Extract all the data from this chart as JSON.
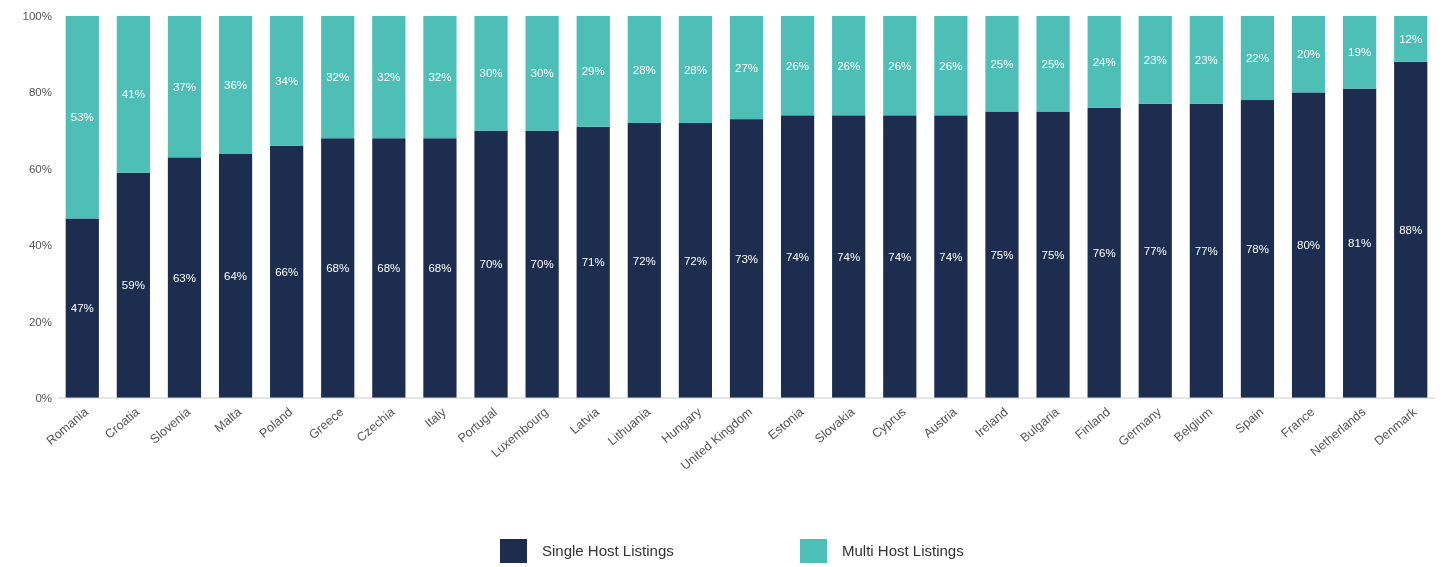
{
  "chart_data": {
    "type": "bar",
    "stacked": true,
    "categories": [
      "Romania",
      "Croatia",
      "Slovenia",
      "Malta",
      "Poland",
      "Greece",
      "Czechia",
      "Italy",
      "Portugal",
      "Luxembourg",
      "Latvia",
      "Lithuania",
      "Hungary",
      "United Kingdom",
      "Estonia",
      "Slovakia",
      "Cyprus",
      "Austria",
      "Ireland",
      "Bulgaria",
      "Finland",
      "Germany",
      "Belgium",
      "Spain",
      "France",
      "Netherlands",
      "Denmark"
    ],
    "series": [
      {
        "name": "Single Host Listings",
        "color": "#1c2d4f",
        "values": [
          47,
          59,
          63,
          64,
          66,
          68,
          68,
          68,
          70,
          70,
          71,
          72,
          72,
          73,
          74,
          74,
          74,
          74,
          75,
          75,
          76,
          77,
          77,
          78,
          80,
          81,
          88
        ],
        "value_labels": [
          "47%",
          "59%",
          "63%",
          "64%",
          "66%",
          "68%",
          "68%",
          "68%",
          "70%",
          "70%",
          "71%",
          "72%",
          "72%",
          "73%",
          "74%",
          "74%",
          "74%",
          "74%",
          "75%",
          "75%",
          "76%",
          "77%",
          "77%",
          "78%",
          "80%",
          "81%",
          "88%"
        ]
      },
      {
        "name": "Multi Host Listings",
        "color": "#4dbfb7",
        "values": [
          53,
          41,
          37,
          36,
          34,
          32,
          32,
          32,
          30,
          30,
          29,
          28,
          28,
          27,
          26,
          26,
          26,
          26,
          25,
          25,
          24,
          23,
          23,
          22,
          20,
          19,
          12
        ],
        "value_labels": [
          "53%",
          "41%",
          "37%",
          "36%",
          "34%",
          "32%",
          "32%",
          "32%",
          "30%",
          "30%",
          "29%",
          "28%",
          "28%",
          "27%",
          "26%",
          "26%",
          "26%",
          "26%",
          "25%",
          "25%",
          "24%",
          "23%",
          "23%",
          "22%",
          "20%",
          "19%",
          "12%"
        ]
      }
    ],
    "ylim": [
      0,
      100
    ],
    "yticks": [
      {
        "value": 0,
        "label": "0%"
      },
      {
        "value": 20,
        "label": "20%"
      },
      {
        "value": 40,
        "label": "40%"
      },
      {
        "value": 60,
        "label": "60%"
      },
      {
        "value": 80,
        "label": "80%"
      },
      {
        "value": 100,
        "label": "100%"
      }
    ],
    "legend": "bottom"
  }
}
